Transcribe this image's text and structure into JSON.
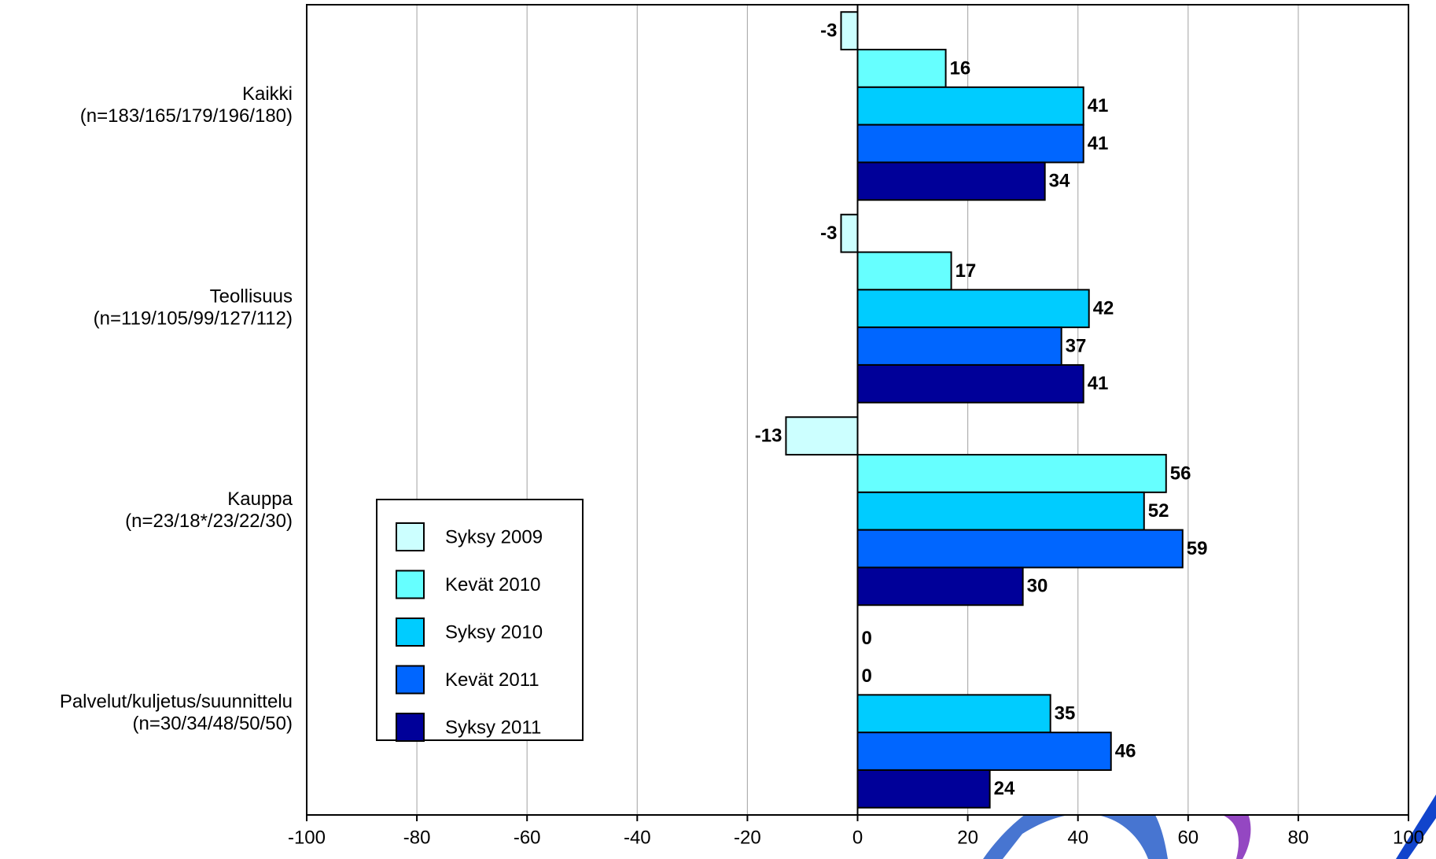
{
  "chart_data": {
    "type": "hbar",
    "categories": [
      "Kaikki",
      "Teollisuus",
      "Kauppa",
      "Palvelut/kuljetus/suunnittelu"
    ],
    "category_subtitles": [
      "(n=183/165/179/196/180)",
      "(n=119/105/99/127/112)",
      "(n=23/18*/23/22/30)",
      "(n=30/34/48/50/50)"
    ],
    "series": [
      {
        "name": "Syksy 2009",
        "color": "#ccffff",
        "values": [
          -3,
          -3,
          -13,
          0
        ]
      },
      {
        "name": "Kevät 2010",
        "color": "#66ffff",
        "values": [
          16,
          17,
          56,
          0
        ]
      },
      {
        "name": "Syksy 2010",
        "color": "#00ccff",
        "values": [
          41,
          42,
          52,
          35
        ]
      },
      {
        "name": "Kevät 2011",
        "color": "#0066ff",
        "values": [
          41,
          37,
          59,
          46
        ]
      },
      {
        "name": "Syksy 2011",
        "color": "#000099",
        "values": [
          34,
          41,
          30,
          24
        ]
      }
    ],
    "xlim": [
      -100,
      100
    ],
    "xticks": [
      -100,
      -80,
      -60,
      -40,
      -20,
      0,
      20,
      40,
      60,
      80,
      100
    ],
    "grid": true
  }
}
